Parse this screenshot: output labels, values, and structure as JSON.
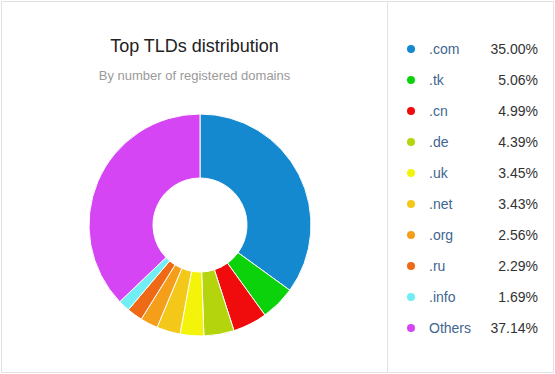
{
  "chart_data": {
    "type": "pie",
    "title": "Top TLDs distribution",
    "subtitle": "By number of registered domains",
    "categories": [
      ".com",
      ".tk",
      ".cn",
      ".de",
      ".uk",
      ".net",
      ".org",
      ".ru",
      ".info",
      "Others"
    ],
    "values": [
      35.0,
      5.06,
      4.99,
      4.39,
      3.45,
      3.43,
      2.56,
      2.29,
      1.69,
      37.14
    ],
    "value_labels": [
      "35.00%",
      "5.06%",
      "4.99%",
      "4.39%",
      "3.45%",
      "3.43%",
      "2.56%",
      "2.29%",
      "1.69%",
      "37.14%"
    ],
    "colors": [
      "#1589d0",
      "#0cd20c",
      "#f00c0c",
      "#b4d40e",
      "#f4f40a",
      "#f4c818",
      "#f49e1a",
      "#ef6a16",
      "#70eef4",
      "#d545f4"
    ],
    "legend": "right"
  }
}
